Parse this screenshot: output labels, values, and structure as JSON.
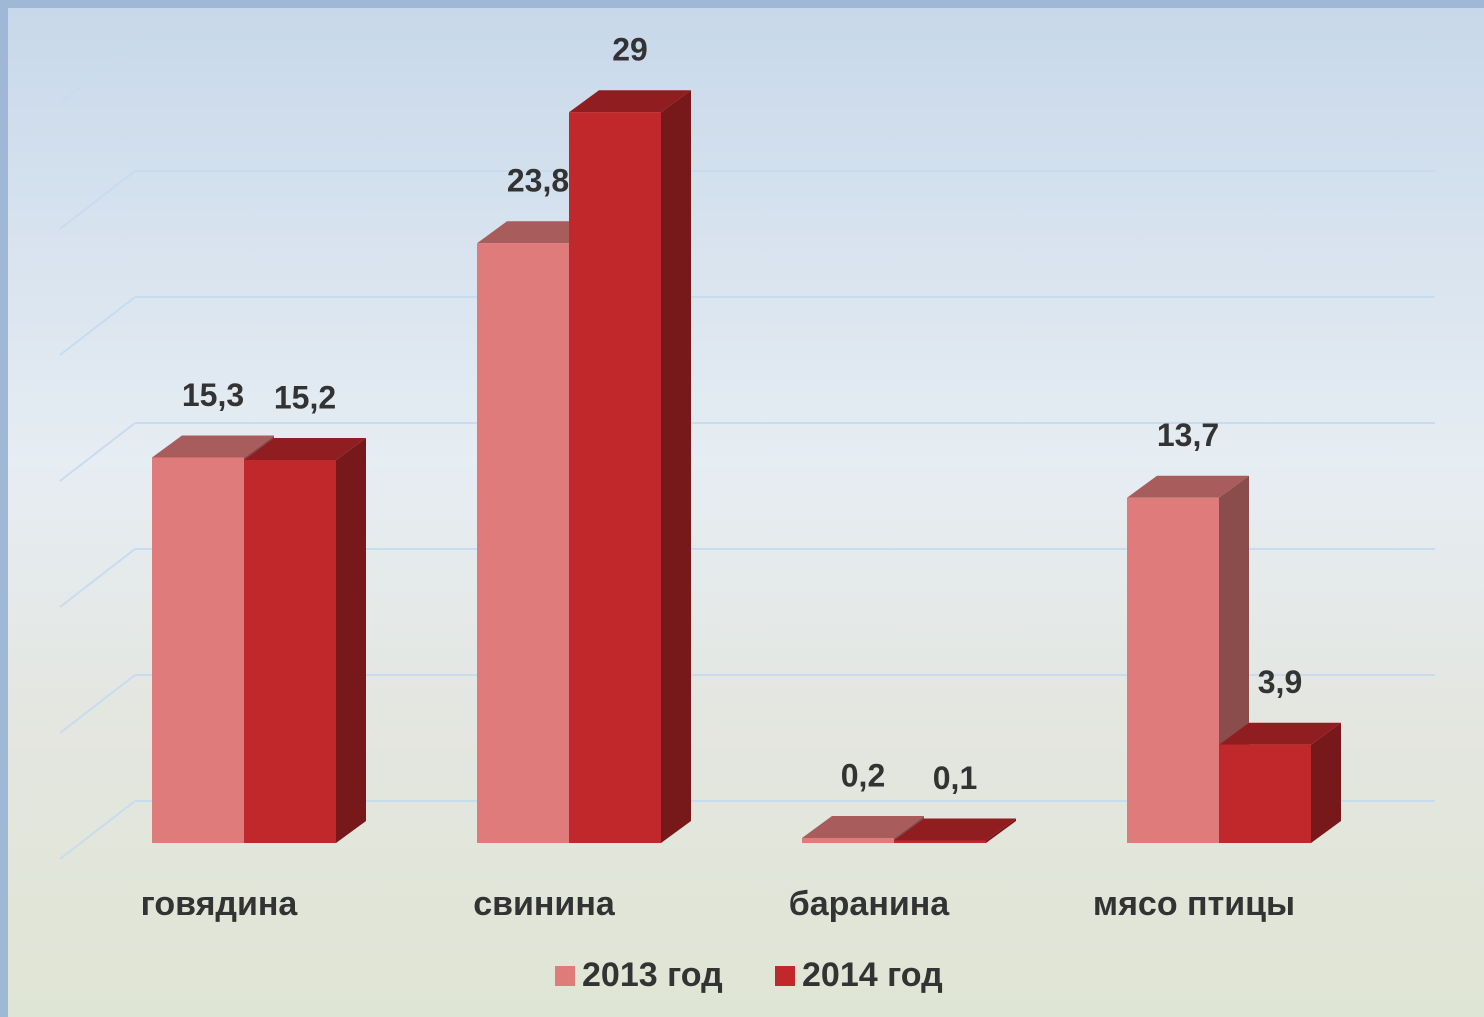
{
  "chart_data": {
    "type": "bar3d",
    "categories": [
      "говядина",
      "свинина",
      "баранина",
      "мясо птицы"
    ],
    "series": [
      {
        "name": "2013 год",
        "color": "#e07b7b",
        "values": [
          15.3,
          23.8,
          0.2,
          13.7
        ],
        "value_labels": [
          "15,3",
          "23,8",
          "0,2",
          "13,7"
        ]
      },
      {
        "name": "2014 год",
        "color": "#c0282c",
        "values": [
          15.2,
          29,
          0.1,
          3.9
        ],
        "value_labels": [
          "15,2",
          "29",
          "0,1",
          "3,9"
        ]
      }
    ],
    "ylim": [
      0,
      30
    ],
    "yticks": [
      0,
      5,
      10,
      15,
      20,
      25,
      30
    ],
    "grid": true
  }
}
